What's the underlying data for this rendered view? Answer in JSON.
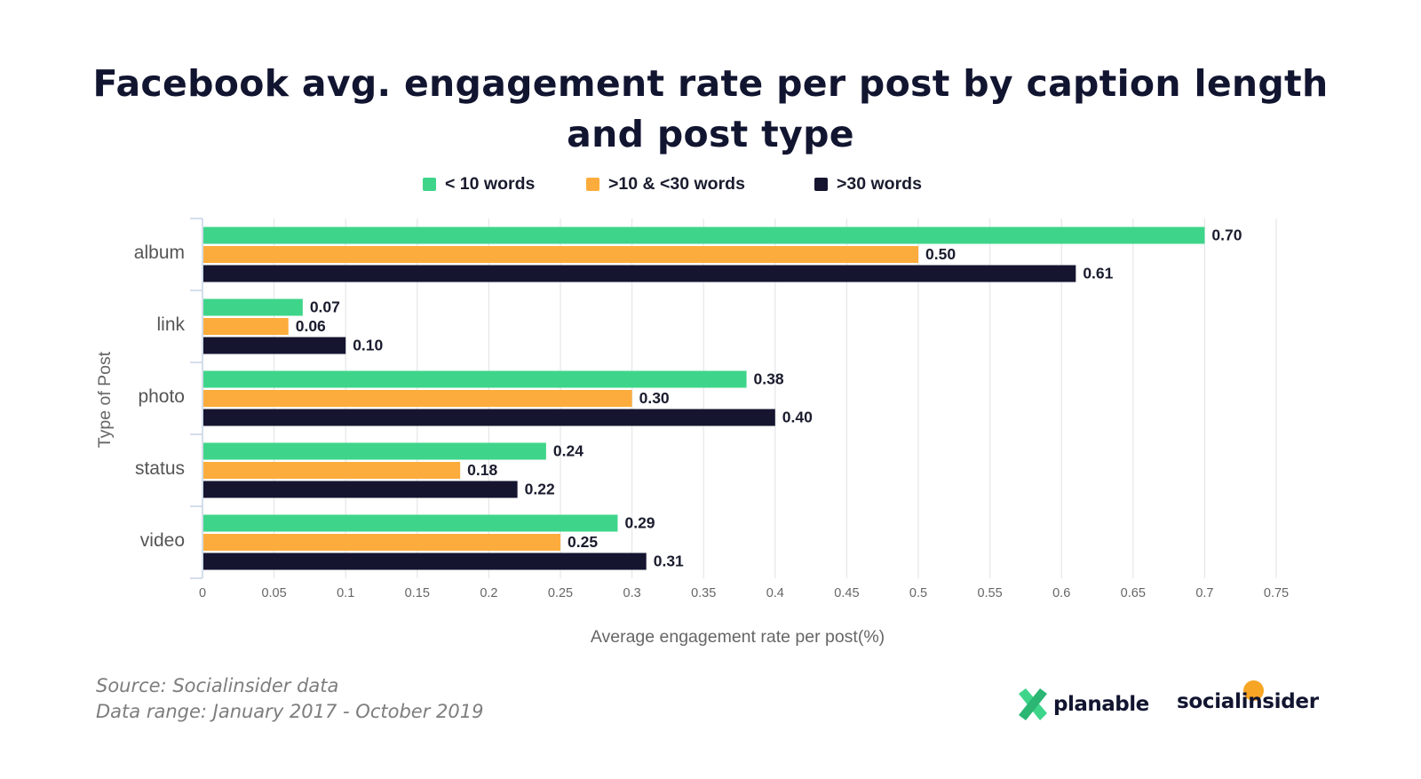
{
  "colors": {
    "lt10": "#3ed58a",
    "mid": "#fcac3c",
    "gt30": "#151530",
    "grid": "#e6e6ea",
    "axis": "#c5d3e6",
    "label_text": "#1a1c2e",
    "tick_text": "#666666"
  },
  "chart_data": {
    "type": "bar",
    "orientation": "horizontal",
    "title": "Facebook avg. engagement rate per post by caption length and post type",
    "categories": [
      "album",
      "link",
      "photo",
      "status",
      "video"
    ],
    "series": [
      {
        "name": "< 10 words",
        "color_key": "lt10",
        "values": [
          0.7,
          0.07,
          0.38,
          0.24,
          0.29
        ],
        "labels": [
          "0.70",
          "0.07",
          "0.38",
          "0.24",
          "0.29"
        ]
      },
      {
        "name": ">10 & <30 words",
        "color_key": "mid",
        "values": [
          0.5,
          0.06,
          0.3,
          0.18,
          0.25
        ],
        "labels": [
          "0.50",
          "0.06",
          "0.30",
          "0.18",
          "0.25"
        ]
      },
      {
        "name": ">30 words",
        "color_key": "gt30",
        "values": [
          0.61,
          0.1,
          0.4,
          0.22,
          0.31
        ],
        "labels": [
          "0.61",
          "0.10",
          "0.40",
          "0.22",
          "0.31"
        ]
      }
    ],
    "xlabel": "Average engagement rate per post(%)",
    "ylabel": "Type of Post",
    "xlim": [
      0,
      0.75
    ],
    "xticks": [
      0,
      0.05,
      0.1,
      0.15,
      0.2,
      0.25,
      0.3,
      0.35,
      0.4,
      0.45,
      0.5,
      0.55,
      0.6,
      0.65,
      0.7,
      0.75
    ],
    "xtick_labels": [
      "0",
      "0.05",
      "0.1",
      "0.15",
      "0.2",
      "0.25",
      "0.3",
      "0.35",
      "0.4",
      "0.45",
      "0.5",
      "0.55",
      "0.6",
      "0.65",
      "0.7",
      "0.75"
    ],
    "grid": true,
    "legend_position": "top"
  },
  "footer": {
    "source": "Source: Socialinsider data",
    "range": "Data range: January 2017 - October 2019"
  },
  "logos": {
    "planable": "planable",
    "socialinsider": "socialinsider"
  }
}
